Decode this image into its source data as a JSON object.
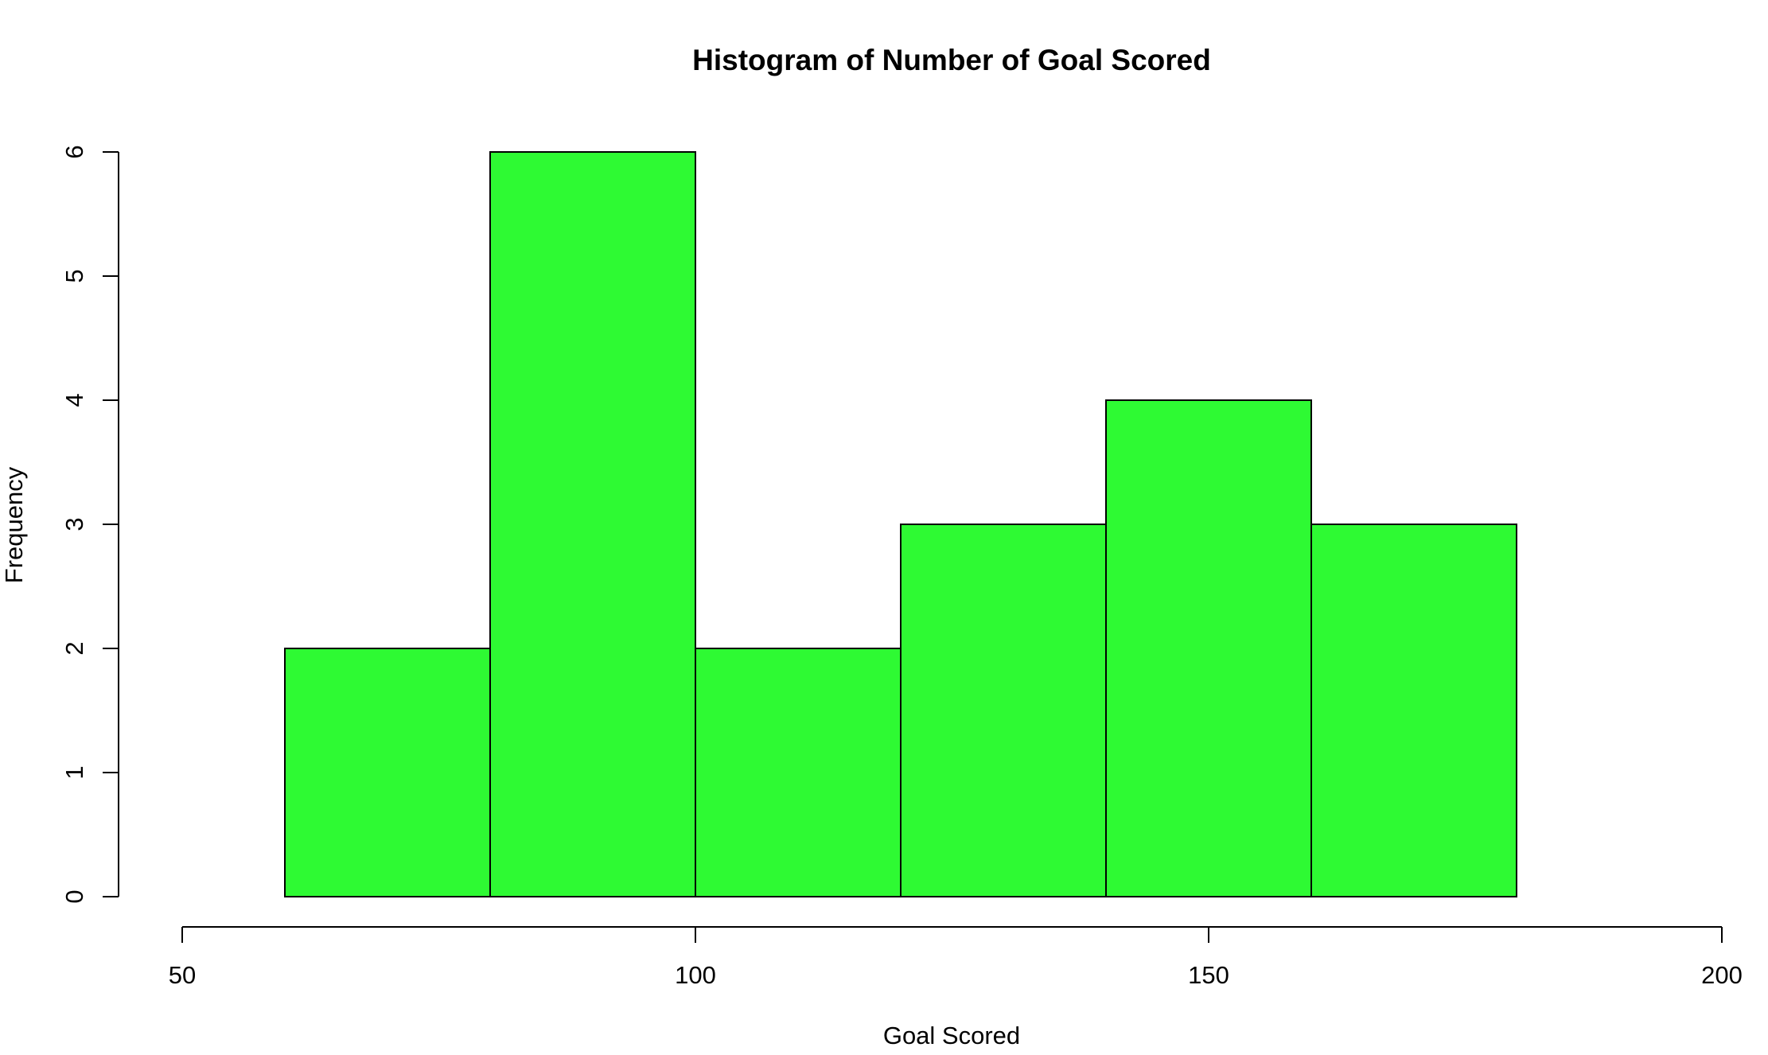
{
  "chart_data": {
    "type": "bar",
    "title": "Histogram of Number of Goal Scored",
    "xlabel": "Goal Scored",
    "ylabel": "Frequency",
    "bins": [
      {
        "start": 60,
        "end": 80,
        "count": 2
      },
      {
        "start": 80,
        "end": 100,
        "count": 6
      },
      {
        "start": 100,
        "end": 120,
        "count": 2
      },
      {
        "start": 120,
        "end": 140,
        "count": 3
      },
      {
        "start": 140,
        "end": 160,
        "count": 4
      },
      {
        "start": 160,
        "end": 180,
        "count": 3
      }
    ],
    "xlim": [
      50,
      200
    ],
    "ylim": [
      0,
      6
    ],
    "x_ticks": [
      50,
      100,
      150,
      200
    ],
    "y_ticks": [
      0,
      1,
      2,
      3,
      4,
      5,
      6
    ],
    "bar_color": "#2efa33",
    "grid": false,
    "legend": "none"
  }
}
